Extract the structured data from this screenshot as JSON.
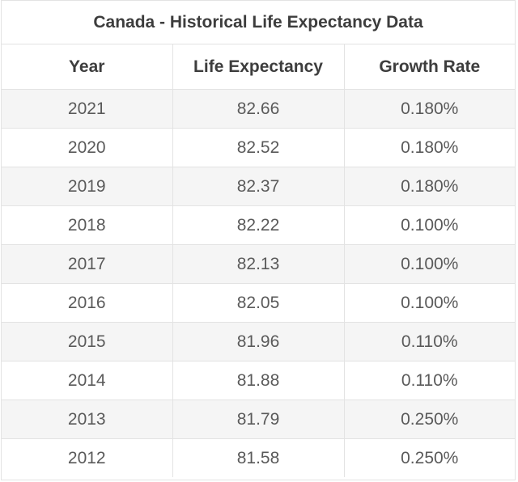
{
  "title": "Canada - Historical Life Expectancy Data",
  "headers": [
    "Year",
    "Life Expectancy",
    "Growth Rate"
  ],
  "rows": [
    [
      "2021",
      "82.66",
      "0.180%"
    ],
    [
      "2020",
      "82.52",
      "0.180%"
    ],
    [
      "2019",
      "82.37",
      "0.180%"
    ],
    [
      "2018",
      "82.22",
      "0.100%"
    ],
    [
      "2017",
      "82.13",
      "0.100%"
    ],
    [
      "2016",
      "82.05",
      "0.100%"
    ],
    [
      "2015",
      "81.96",
      "0.110%"
    ],
    [
      "2014",
      "81.88",
      "0.110%"
    ],
    [
      "2013",
      "81.79",
      "0.250%"
    ],
    [
      "2012",
      "81.58",
      "0.250%"
    ]
  ]
}
